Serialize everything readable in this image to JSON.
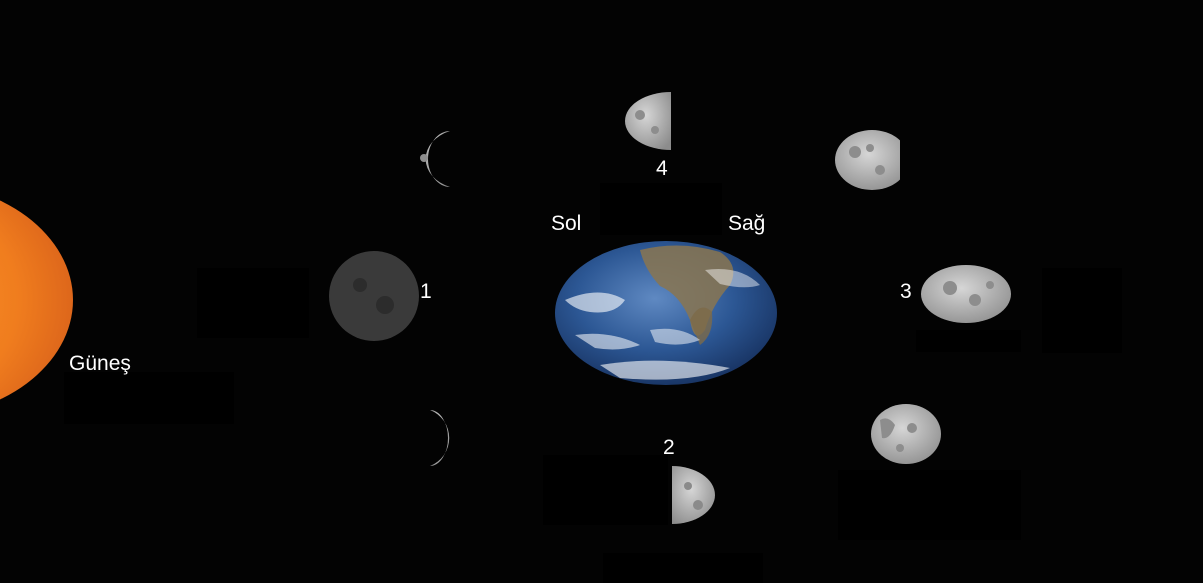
{
  "labels": {
    "sun": "Güneş",
    "left": "Sol",
    "right": "Sağ",
    "position_1": "1",
    "position_2": "2",
    "position_3": "3",
    "position_4": "4"
  },
  "colors": {
    "background": "#030303",
    "sun": "#f07d1e",
    "earth_ocean": "#2c5794",
    "moon_lit": "#b4b4b4",
    "moon_dark": "#3a3a3a",
    "label_text": "#ffffff"
  }
}
